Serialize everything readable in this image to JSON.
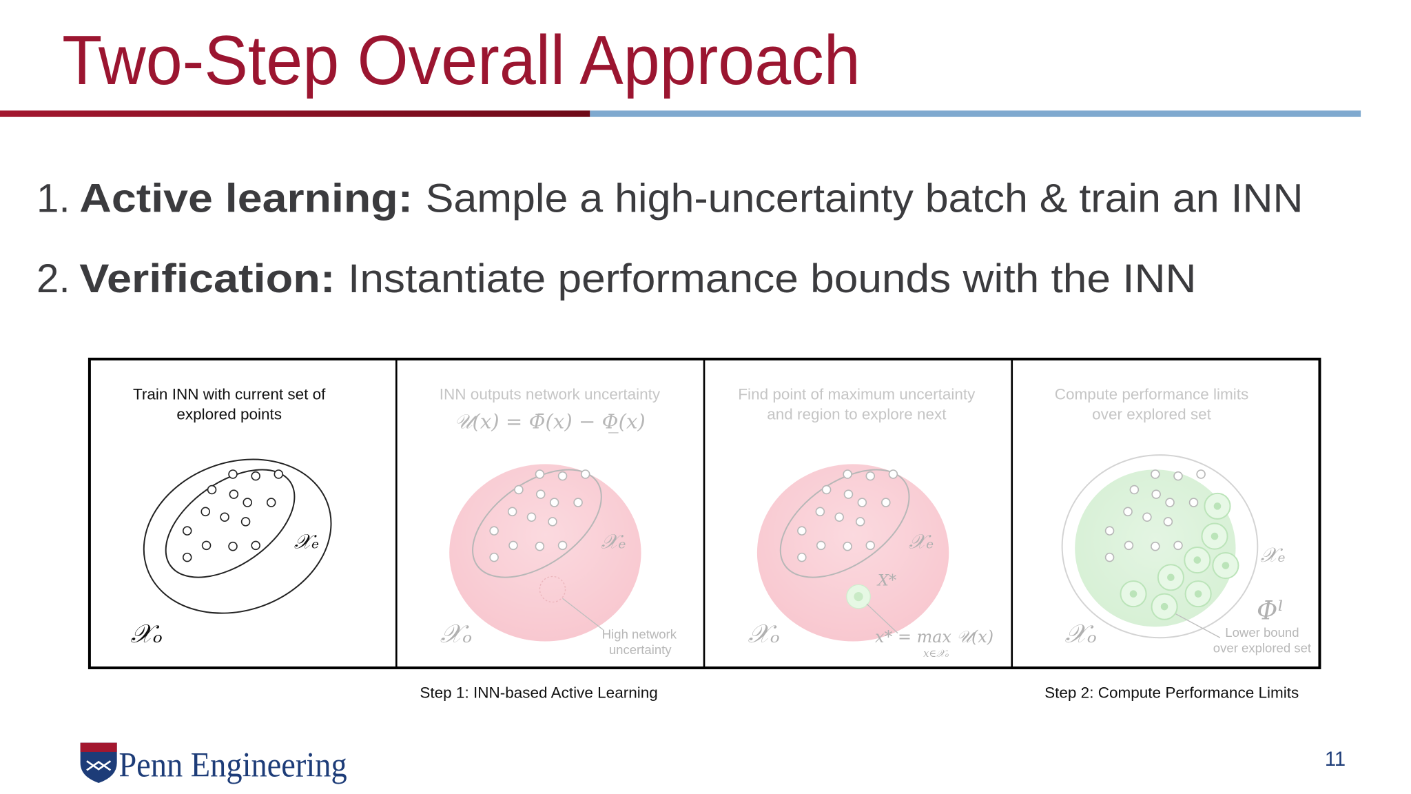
{
  "header": {
    "title": "Two-Step Overall Approach"
  },
  "steps": [
    {
      "number": "1.",
      "label": "Active learning:",
      "text": "Sample a high-uncertainty batch & train an INN"
    },
    {
      "number": "2.",
      "label": "Verification:",
      "text": "Instantiate performance bounds with the INN"
    }
  ],
  "figure": {
    "panels": [
      {
        "title": [
          "Train INN with current set of",
          "explored points"
        ],
        "set_labels": [
          "𝒳ₑ",
          "𝒳ₒ"
        ]
      },
      {
        "title": [
          "INN outputs network uncertainty"
        ],
        "formula": "𝒰(x) = Φ̄(x) − Φ̲(x)",
        "set_labels": [
          "𝒳ₑ",
          "𝒳ₒ"
        ],
        "annotation": [
          "High network",
          "uncertainty"
        ]
      },
      {
        "title": [
          "Find point of maximum uncertainty",
          "and region to explore next"
        ],
        "set_labels": [
          "𝒳ₑ",
          "𝒳ₒ"
        ],
        "point_label": "X*",
        "formula": "x* = max 𝒰(x)",
        "formula_subscript": "x∈𝒳ₒ"
      },
      {
        "title": [
          "Compute performance limits",
          "over explored set"
        ],
        "set_labels": [
          "𝒳ₑ",
          "𝒳ₒ"
        ],
        "bound_label": "Φˡ",
        "annotation": [
          "Lower bound",
          "over explored set"
        ]
      }
    ],
    "captions": [
      "Step 1: INN-based Active Learning",
      "Step 2: Compute Performance Limits"
    ]
  },
  "footer": {
    "logo": "Penn Engineering",
    "page_number": "11"
  }
}
